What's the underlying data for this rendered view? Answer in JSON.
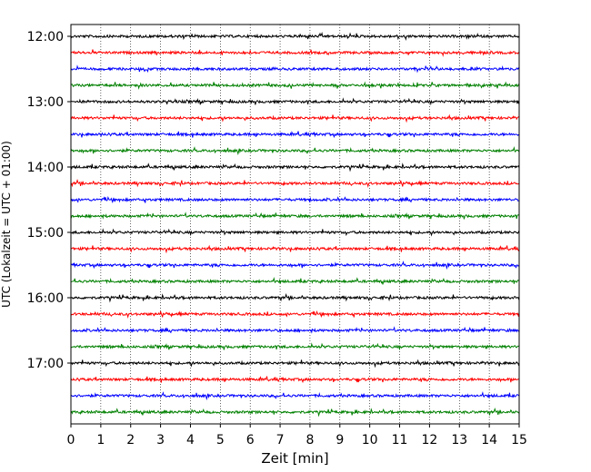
{
  "chart_data": {
    "type": "line",
    "title": "",
    "xlabel": "Zeit  [min]",
    "ylabel": "UTC (Lokalzeit = UTC + 01:00)",
    "xlim": [
      0,
      15
    ],
    "x_ticks": [
      0,
      1,
      2,
      3,
      4,
      5,
      6,
      7,
      8,
      9,
      10,
      11,
      12,
      13,
      14,
      15
    ],
    "x_tick_labels": [
      "0",
      "1",
      "2",
      "3",
      "4",
      "5",
      "6",
      "7",
      "8",
      "9",
      "10",
      "11",
      "12",
      "13",
      "14",
      "15"
    ],
    "y_tick_labels": [
      {
        "row": 0,
        "label": "12:00"
      },
      {
        "row": 4,
        "label": "13:00"
      },
      {
        "row": 8,
        "label": "14:00"
      },
      {
        "row": 12,
        "label": "15:00"
      },
      {
        "row": 16,
        "label": "16:00"
      },
      {
        "row": 20,
        "label": "17:00"
      }
    ],
    "grid": {
      "x": "dotted-vertical",
      "y": false
    },
    "row_start_times": [
      "12:00",
      "12:15",
      "12:30",
      "12:45",
      "13:00",
      "13:15",
      "13:30",
      "13:45",
      "14:00",
      "14:15",
      "14:30",
      "14:45",
      "15:00",
      "15:15",
      "15:30",
      "15:45",
      "16:00",
      "16:15",
      "16:30",
      "16:45",
      "17:00",
      "17:15",
      "17:30",
      "17:45"
    ],
    "trace_colors": [
      "#000000",
      "#ff0000",
      "#0000ff",
      "#008000"
    ],
    "trace_minutes_per_row": 15
  }
}
